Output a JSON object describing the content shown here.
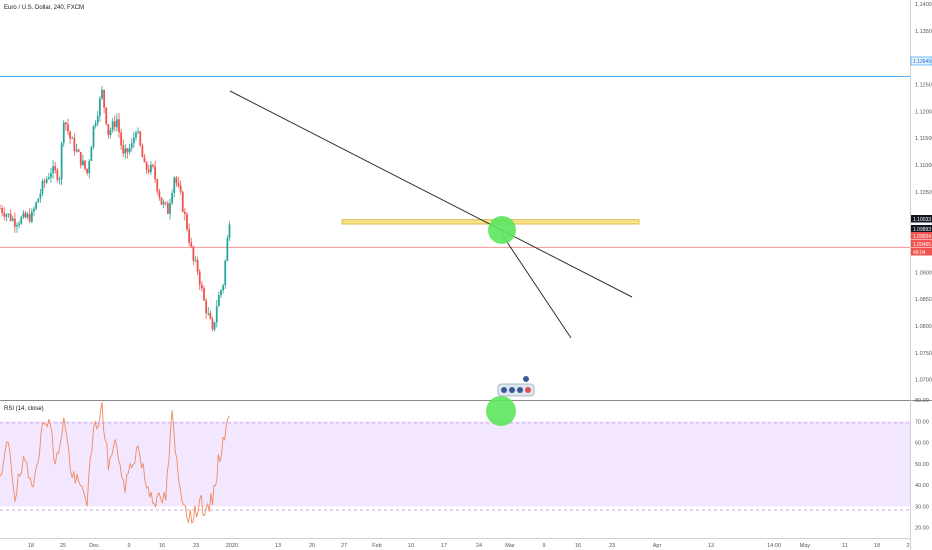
{
  "header": {
    "symbol_title": "Euro / U.S. Dollar, 240, FXCM",
    "rsi_title": "RSI (14, close)"
  },
  "colors": {
    "up": "#26a69a",
    "down": "#ef5350",
    "rsi_line": "#f08a5d",
    "rsi_band": "#f3e6ff",
    "support_zone": "#f6e27a",
    "blue_level": "#2196f3",
    "red_level": "#ef5350",
    "trendline": "#333333",
    "highlight_circle": "#5ce65c",
    "price_tag_dark": "#131722",
    "price_tag_red": "#ef5350"
  },
  "chart_data": [
    {
      "type": "candlestick",
      "title": "Euro / U.S. Dollar, 240, FXCM",
      "ylim": [
        1.0675,
        1.14
      ],
      "y_ticks": [
        "1.14000",
        "1.13500",
        "1.12500",
        "1.12000",
        "1.11500",
        "1.11000",
        "1.10500",
        "1.09500",
        "1.09000",
        "1.08500",
        "1.08000",
        "1.07500",
        "1.07000"
      ],
      "x_ticks": [
        "18",
        "25",
        "Dec",
        "9",
        "16",
        "23",
        "2020",
        "13",
        "20",
        "27",
        "Feb",
        "10",
        "17",
        "24",
        "Mar",
        "9",
        "16",
        "23",
        "Apr",
        "13",
        "14:00",
        "May",
        "11",
        "18",
        "2"
      ],
      "price_tags": [
        "1.12649",
        "1.10033",
        "1.09893",
        "1.09654",
        "1.09465",
        "49:04"
      ],
      "horizontal_levels": [
        {
          "name": "blue-level",
          "price": 1.12649
        },
        {
          "name": "red-level",
          "price": 1.09465
        }
      ],
      "support_zone": [
        1.099,
        1.0998
      ],
      "trendlines": [
        {
          "name": "main-downtrend",
          "from": [
            "2020-01-01",
            1.124
          ],
          "to": [
            "2020-03-24",
            1.087
          ]
        },
        {
          "name": "steep-line",
          "from": [
            "2020-02-27",
            1.099
          ],
          "to": [
            "2020-03-13",
            1.079
          ]
        }
      ],
      "anchors": [
        {
          "date": "2019-11-13",
          "price": 1.102
        },
        {
          "date": "2019-11-20",
          "price": 1.0995
        },
        {
          "date": "2019-11-28",
          "price": 1.1005
        },
        {
          "date": "2019-12-03",
          "price": 1.106
        },
        {
          "date": "2019-12-07",
          "price": 1.109
        },
        {
          "date": "2019-12-11",
          "price": 1.108
        },
        {
          "date": "2019-12-13",
          "price": 1.119
        },
        {
          "date": "2019-12-16",
          "price": 1.115
        },
        {
          "date": "2019-12-19",
          "price": 1.1125
        },
        {
          "date": "2019-12-24",
          "price": 1.1085
        },
        {
          "date": "2019-12-27",
          "price": 1.117
        },
        {
          "date": "2019-12-31",
          "price": 1.1235
        },
        {
          "date": "2020-01-03",
          "price": 1.116
        },
        {
          "date": "2020-01-07",
          "price": 1.1185
        },
        {
          "date": "2020-01-10",
          "price": 1.1115
        },
        {
          "date": "2020-01-14",
          "price": 1.1135
        },
        {
          "date": "2020-01-16",
          "price": 1.117
        },
        {
          "date": "2020-01-20",
          "price": 1.1095
        },
        {
          "date": "2020-01-24",
          "price": 1.109
        },
        {
          "date": "2020-01-28",
          "price": 1.103
        },
        {
          "date": "2020-01-31",
          "price": 1.1015
        },
        {
          "date": "2020-02-03",
          "price": 1.108
        },
        {
          "date": "2020-02-06",
          "price": 1.104
        },
        {
          "date": "2020-02-09",
          "price": 1.0985
        },
        {
          "date": "2020-02-12",
          "price": 1.092
        },
        {
          "date": "2020-02-14",
          "price": 1.0905
        },
        {
          "date": "2020-02-17",
          "price": 1.0845
        },
        {
          "date": "2020-02-20",
          "price": 1.0805
        },
        {
          "date": "2020-02-21",
          "price": 1.0785
        },
        {
          "date": "2020-02-23",
          "price": 1.084
        },
        {
          "date": "2020-02-24",
          "price": 1.0855
        },
        {
          "date": "2020-02-26",
          "price": 1.088
        },
        {
          "date": "2020-02-28",
          "price": 1.096
        },
        {
          "date": "2020-02-29",
          "price": 1.1
        }
      ]
    },
    {
      "type": "line",
      "title": "RSI (14, close)",
      "ylim": [
        18,
        80
      ],
      "y_ticks": [
        "80.00",
        "70.00",
        "60.00",
        "50.00",
        "40.00",
        "30.00",
        "20.00"
      ],
      "band": [
        30,
        70
      ],
      "anchors": [
        {
          "date": "2019-11-13",
          "value": 40
        },
        {
          "date": "2019-11-17",
          "value": 62
        },
        {
          "date": "2019-11-20",
          "value": 35
        },
        {
          "date": "2019-11-24",
          "value": 50
        },
        {
          "date": "2019-11-28",
          "value": 40
        },
        {
          "date": "2019-12-03",
          "value": 66
        },
        {
          "date": "2019-12-06",
          "value": 74
        },
        {
          "date": "2019-12-09",
          "value": 48
        },
        {
          "date": "2019-12-13",
          "value": 71
        },
        {
          "date": "2019-12-17",
          "value": 44
        },
        {
          "date": "2019-12-20",
          "value": 40
        },
        {
          "date": "2019-12-24",
          "value": 34
        },
        {
          "date": "2019-12-27",
          "value": 64
        },
        {
          "date": "2019-12-31",
          "value": 76
        },
        {
          "date": "2020-01-03",
          "value": 50
        },
        {
          "date": "2020-01-07",
          "value": 60
        },
        {
          "date": "2020-01-10",
          "value": 38
        },
        {
          "date": "2020-01-14",
          "value": 50
        },
        {
          "date": "2020-01-17",
          "value": 58
        },
        {
          "date": "2020-01-21",
          "value": 40
        },
        {
          "date": "2020-01-26",
          "value": 32
        },
        {
          "date": "2020-01-30",
          "value": 34
        },
        {
          "date": "2020-02-02",
          "value": 72
        },
        {
          "date": "2020-02-05",
          "value": 42
        },
        {
          "date": "2020-02-09",
          "value": 28
        },
        {
          "date": "2020-02-12",
          "value": 23
        },
        {
          "date": "2020-02-15",
          "value": 35
        },
        {
          "date": "2020-02-18",
          "value": 25
        },
        {
          "date": "2020-02-21",
          "value": 34
        },
        {
          "date": "2020-02-23",
          "value": 46
        },
        {
          "date": "2020-02-26",
          "value": 62
        },
        {
          "date": "2020-02-29",
          "value": 71
        }
      ]
    }
  ]
}
